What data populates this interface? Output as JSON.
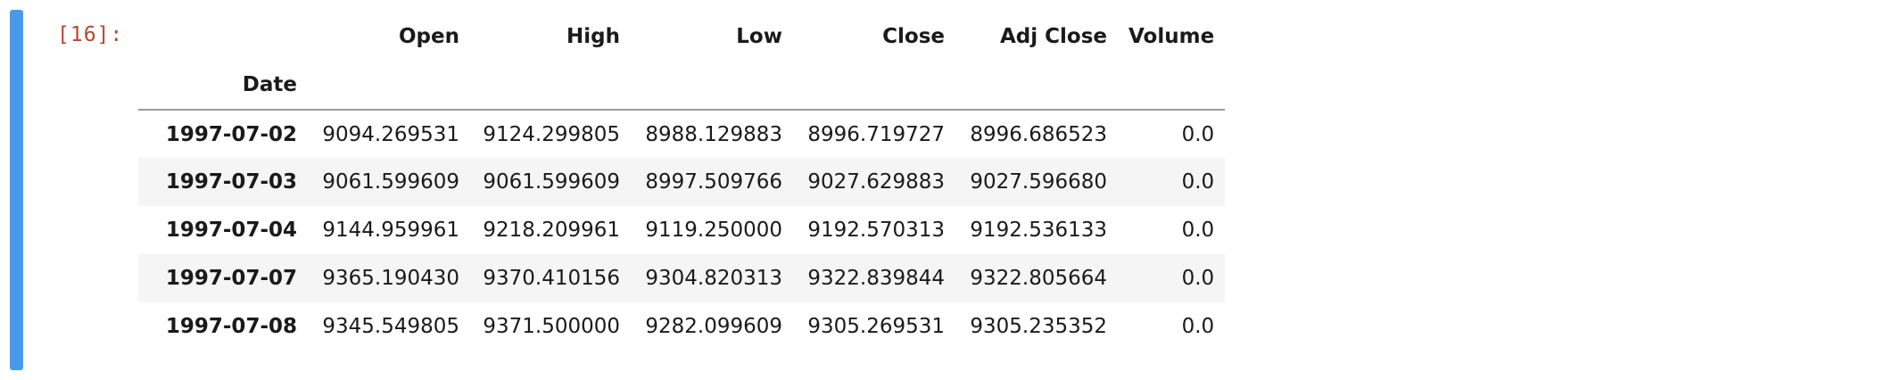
{
  "colors": {
    "selection_bar": "#4a99e8",
    "prompt": "#b7462e",
    "stripe": "#f5f5f5",
    "header_rule": "#9a9a9a"
  },
  "cell": {
    "prompt": "[16]:"
  },
  "dataframe": {
    "index_name": "Date",
    "columns": [
      "Open",
      "High",
      "Low",
      "Close",
      "Adj Close",
      "Volume"
    ],
    "rows": [
      {
        "date": "1997-07-02",
        "values": [
          "9094.269531",
          "9124.299805",
          "8988.129883",
          "8996.719727",
          "8996.686523",
          "0.0"
        ]
      },
      {
        "date": "1997-07-03",
        "values": [
          "9061.599609",
          "9061.599609",
          "8997.509766",
          "9027.629883",
          "9027.596680",
          "0.0"
        ]
      },
      {
        "date": "1997-07-04",
        "values": [
          "9144.959961",
          "9218.209961",
          "9119.250000",
          "9192.570313",
          "9192.536133",
          "0.0"
        ]
      },
      {
        "date": "1997-07-07",
        "values": [
          "9365.190430",
          "9370.410156",
          "9304.820313",
          "9322.839844",
          "9322.805664",
          "0.0"
        ]
      },
      {
        "date": "1997-07-08",
        "values": [
          "9345.549805",
          "9371.500000",
          "9282.099609",
          "9305.269531",
          "9305.235352",
          "0.0"
        ]
      }
    ]
  }
}
